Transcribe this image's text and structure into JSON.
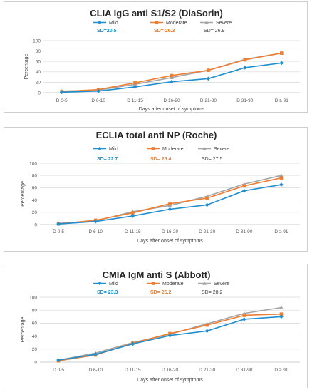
{
  "chart_data": [
    {
      "type": "line",
      "title": "CLIA IgG anti S1/S2 (DiaSorin)",
      "xlabel": "Days after onset of symptoms",
      "ylabel": "Percentage",
      "categories": [
        "D 0-5",
        "D 6-10",
        "D 11-15",
        "D 16-20",
        "D 21-30",
        "D 31-90",
        "D ≥ 91"
      ],
      "ylim": [
        0,
        100
      ],
      "yticks": [
        0,
        20,
        40,
        60,
        80,
        100
      ],
      "grid": true,
      "legend": "top",
      "series": [
        {
          "name": "Mild",
          "sd": "SD=20.5",
          "color": "#1f8fcf",
          "marker": "diamond",
          "values": [
            1,
            3,
            11,
            21,
            27,
            48,
            57
          ]
        },
        {
          "name": "Moderate",
          "sd": "SD= 26.3",
          "color": "#ed7d31",
          "marker": "square",
          "values": [
            2,
            6,
            19,
            33,
            43,
            63,
            76
          ]
        },
        {
          "name": "Severe",
          "sd": "SD= 26.9",
          "color": "#a5a5a5",
          "marker": "triangle",
          "values": [
            3,
            5,
            16,
            29,
            43,
            64,
            76
          ]
        }
      ]
    },
    {
      "type": "line",
      "title": "ECLIA total anti NP (Roche)",
      "xlabel": "Days after onset of symptoms",
      "ylabel": "Percentage",
      "categories": [
        "D 0-5",
        "D 6-10",
        "D 11-15",
        "D 16-20",
        "D 21-30",
        "D 31-90",
        "D ≥ 91"
      ],
      "ylim": [
        0,
        100
      ],
      "yticks": [
        0,
        20,
        40,
        60,
        80,
        100
      ],
      "grid": true,
      "legend": "top",
      "series": [
        {
          "name": "Mild",
          "sd": "SD= 22.7",
          "color": "#1f8fcf",
          "marker": "diamond",
          "values": [
            1,
            5,
            14,
            25,
            32,
            55,
            65
          ]
        },
        {
          "name": "Moderate",
          "sd": "SD= 25.4",
          "color": "#ed7d31",
          "marker": "square",
          "values": [
            1,
            7,
            19,
            34,
            43,
            63,
            76
          ]
        },
        {
          "name": "Severe",
          "sd": "SD= 27.5",
          "color": "#a5a5a5",
          "marker": "triangle",
          "values": [
            2,
            6,
            21,
            31,
            46,
            66,
            80
          ]
        }
      ]
    },
    {
      "type": "line",
      "title": "CMIA IgM anti S (Abbott)",
      "xlabel": "Days after onset of symptoms",
      "ylabel": "Percentage",
      "categories": [
        "D 0-5",
        "D 6-10",
        "D 11-15",
        "D 16-20",
        "D 21-30",
        "D 31-90",
        "D ≥ 91"
      ],
      "ylim": [
        0,
        100
      ],
      "yticks": [
        0,
        20,
        40,
        60,
        80,
        100
      ],
      "grid": true,
      "legend": "top",
      "series": [
        {
          "name": "Mild",
          "sd": "SD= 23.3",
          "color": "#1f8fcf",
          "marker": "diamond",
          "values": [
            3,
            12,
            28,
            41,
            48,
            66,
            70
          ]
        },
        {
          "name": "Moderate",
          "sd": "SD= 26.2",
          "color": "#ed7d31",
          "marker": "square",
          "values": [
            2,
            11,
            29,
            44,
            57,
            72,
            74
          ]
        },
        {
          "name": "Severe",
          "sd": "SD= 28.2",
          "color": "#a5a5a5",
          "marker": "triangle",
          "values": [
            3,
            14,
            30,
            43,
            59,
            75,
            84
          ]
        }
      ]
    }
  ]
}
